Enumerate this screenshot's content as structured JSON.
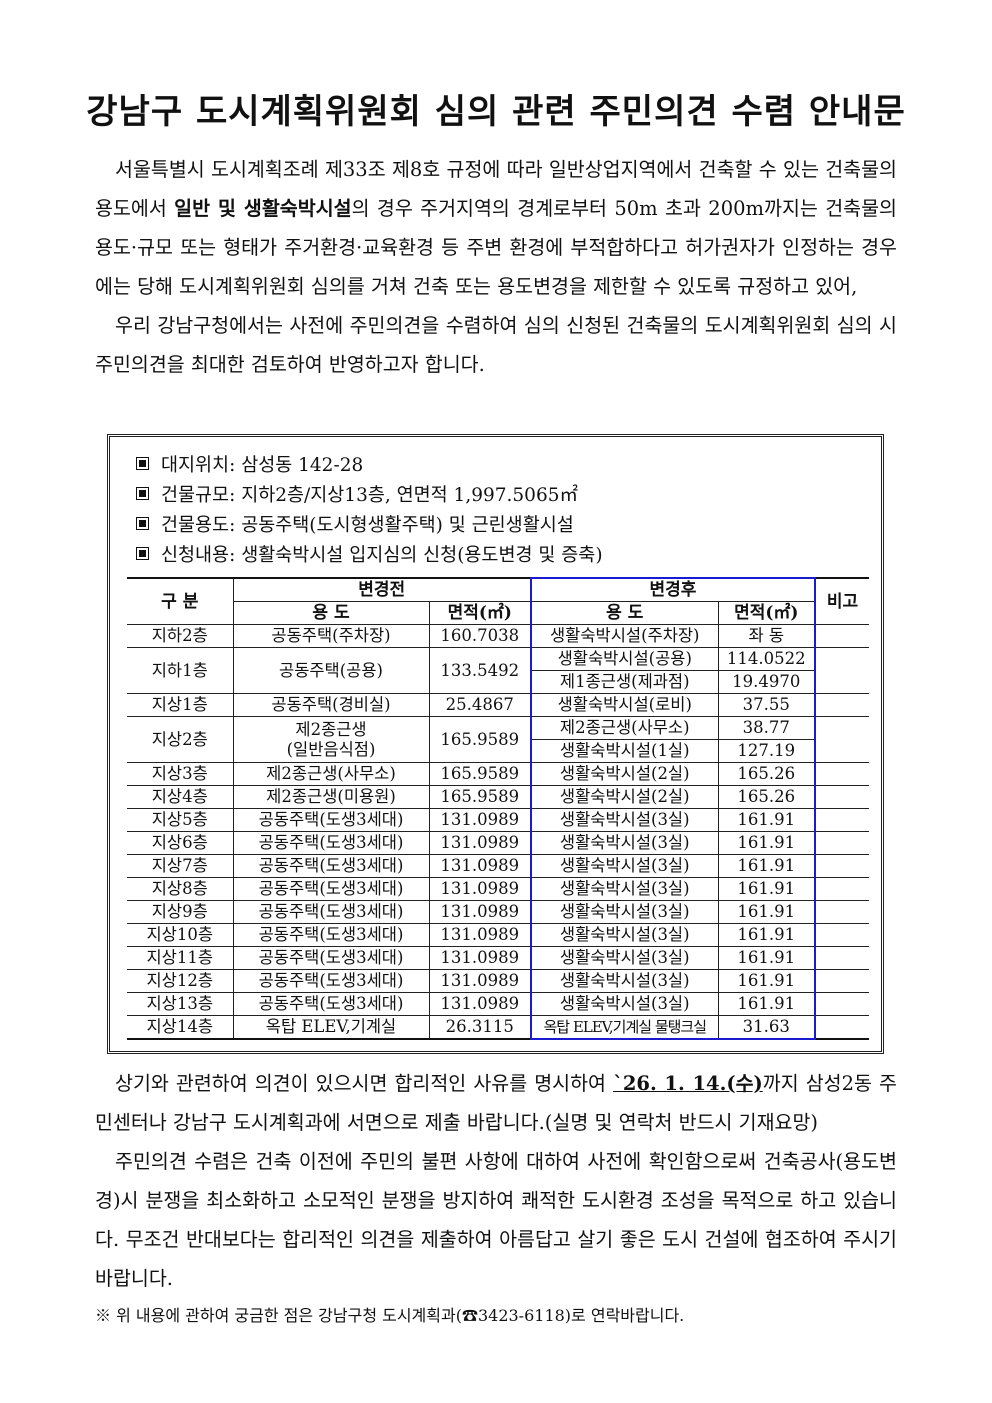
{
  "title": "강남구 도시계획위원회 심의 관련 주민의견 수렴 안내문",
  "intro": {
    "p1_a": "서울특별시 도시계획조례 제33조 제8호 규정에 따라 일반상업지역에서 건축할 수 있는 건축물의 용도에서 ",
    "p1_bold": "일반 및 생활숙박시설",
    "p1_b": "의 경우 주거지역의 경계로부터 50m 초과 200m까지는 건축물의 용도·규모 또는 형태가 주거환경·교육환경 등 주변 환경에 부적합하다고 허가권자가 인정하는 경우에는 당해 도시계획위원회 심의를 거쳐 건축 또는 용도변경을 제한할 수 있도록 규정하고 있어,",
    "p2": "우리 강남구청에서는 사전에 주민의견을 수렴하여 심의 신청된 건축물의 도시계획위원회 심의 시 주민의견을 최대한 검토하여 반영하고자 합니다."
  },
  "info": [
    "대지위치: 삼성동 142-28",
    "건물규모: 지하2층/지상13층, 연면적 1,997.5065㎡",
    "건물용도: 공동주택(도시형생활주택) 및 근린생활시설",
    "신청내용: 생활숙박시설 입지심의 신청(용도변경 및 증축)"
  ],
  "table": {
    "headers": {
      "category": "구 분",
      "before": "변경전",
      "after": "변경후",
      "remarks": "비고",
      "use": "용 도",
      "area": "면적(㎡)"
    },
    "rows": [
      {
        "floor": "지하2층",
        "before_use": "공동주택(주차장)",
        "before_area": "160.7038",
        "after": [
          {
            "use": "생활숙박시설(주차장)",
            "area": "좌 동"
          }
        ]
      },
      {
        "floor": "지하1층",
        "before_use": "공동주택(공용)",
        "before_area": "133.5492",
        "after": [
          {
            "use": "생활숙박시설(공용)",
            "area": "114.0522"
          },
          {
            "use": "제1종근생(제과점)",
            "area": "19.4970"
          }
        ]
      },
      {
        "floor": "지상1층",
        "before_use": "공동주택(경비실)",
        "before_area": "25.4867",
        "after": [
          {
            "use": "생활숙박시설(로비)",
            "area": "37.55"
          }
        ]
      },
      {
        "floor": "지상2층",
        "before_use": "제2종근생\n(일반음식점)",
        "before_area": "165.9589",
        "after": [
          {
            "use": "제2종근생(사무소)",
            "area": "38.77"
          },
          {
            "use": "생활숙박시설(1실)",
            "area": "127.19"
          }
        ]
      },
      {
        "floor": "지상3층",
        "before_use": "제2종근생(사무소)",
        "before_area": "165.9589",
        "after": [
          {
            "use": "생활숙박시설(2실)",
            "area": "165.26"
          }
        ]
      },
      {
        "floor": "지상4층",
        "before_use": "제2종근생(미용원)",
        "before_area": "165.9589",
        "after": [
          {
            "use": "생활숙박시설(2실)",
            "area": "165.26"
          }
        ]
      },
      {
        "floor": "지상5층",
        "before_use": "공동주택(도생3세대)",
        "before_area": "131.0989",
        "after": [
          {
            "use": "생활숙박시설(3실)",
            "area": "161.91"
          }
        ]
      },
      {
        "floor": "지상6층",
        "before_use": "공동주택(도생3세대)",
        "before_area": "131.0989",
        "after": [
          {
            "use": "생활숙박시설(3실)",
            "area": "161.91"
          }
        ]
      },
      {
        "floor": "지상7층",
        "before_use": "공동주택(도생3세대)",
        "before_area": "131.0989",
        "after": [
          {
            "use": "생활숙박시설(3실)",
            "area": "161.91"
          }
        ]
      },
      {
        "floor": "지상8층",
        "before_use": "공동주택(도생3세대)",
        "before_area": "131.0989",
        "after": [
          {
            "use": "생활숙박시설(3실)",
            "area": "161.91"
          }
        ]
      },
      {
        "floor": "지상9층",
        "before_use": "공동주택(도생3세대)",
        "before_area": "131.0989",
        "after": [
          {
            "use": "생활숙박시설(3실)",
            "area": "161.91"
          }
        ]
      },
      {
        "floor": "지상10층",
        "before_use": "공동주택(도생3세대)",
        "before_area": "131.0989",
        "after": [
          {
            "use": "생활숙박시설(3실)",
            "area": "161.91"
          }
        ]
      },
      {
        "floor": "지상11층",
        "before_use": "공동주택(도생3세대)",
        "before_area": "131.0989",
        "after": [
          {
            "use": "생활숙박시설(3실)",
            "area": "161.91"
          }
        ]
      },
      {
        "floor": "지상12층",
        "before_use": "공동주택(도생3세대)",
        "before_area": "131.0989",
        "after": [
          {
            "use": "생활숙박시설(3실)",
            "area": "161.91"
          }
        ]
      },
      {
        "floor": "지상13층",
        "before_use": "공동주택(도생3세대)",
        "before_area": "131.0989",
        "after": [
          {
            "use": "생활숙박시설(3실)",
            "area": "161.91"
          }
        ]
      },
      {
        "floor": "지상14층",
        "before_use": "옥탑 ELEV,기계실",
        "before_area": "26.3115",
        "after": [
          {
            "use": "옥탑 ELEV,기계실 물탱크실",
            "area": "31.63"
          }
        ]
      }
    ]
  },
  "closing": {
    "p1_a": "상기와 관련하여 의견이 있으시면 합리적인 사유를 명시하여 ",
    "p1_date": "`26. 1. 14.(수)",
    "p1_b": "까지 삼성2동 주민센터나 강남구 도시계획과에 서면으로 제출 바랍니다.(실명 및 연락처 반드시 기재요망)",
    "p2": "주민의견 수렴은 건축 이전에 주민의 불편 사항에 대하여 사전에 확인함으로써 건축공사(용도변경)시 분쟁을 최소화하고 소모적인 분쟁을 방지하여 쾌적한 도시환경 조성을 목적으로 하고 있습니다. 무조건 반대보다는 합리적인 의견을 제출하여 아름답고 살기 좋은 도시 건설에 협조하여 주시기 바랍니다.",
    "note": "※ 위 내용에 관하여 궁금한 점은 강남구청 도시계획과(☎3423-6118)로 연락바랍니다."
  },
  "colors": {
    "after_border": "#1a1ad0"
  }
}
